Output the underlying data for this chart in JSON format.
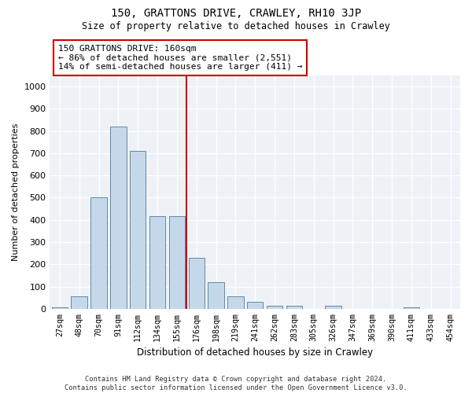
{
  "title": "150, GRATTONS DRIVE, CRAWLEY, RH10 3JP",
  "subtitle": "Size of property relative to detached houses in Crawley",
  "xlabel": "Distribution of detached houses by size in Crawley",
  "ylabel": "Number of detached properties",
  "bins": [
    "27sqm",
    "48sqm",
    "70sqm",
    "91sqm",
    "112sqm",
    "134sqm",
    "155sqm",
    "176sqm",
    "198sqm",
    "219sqm",
    "241sqm",
    "262sqm",
    "283sqm",
    "305sqm",
    "326sqm",
    "347sqm",
    "369sqm",
    "390sqm",
    "411sqm",
    "433sqm",
    "454sqm"
  ],
  "bar_values": [
    5,
    55,
    500,
    820,
    710,
    415,
    415,
    228,
    118,
    55,
    30,
    12,
    12,
    0,
    12,
    0,
    0,
    0,
    5,
    0,
    0
  ],
  "bar_color": "#c5d8ea",
  "bar_edge_color": "#4a7ba0",
  "vline_color": "#cc0000",
  "annotation_text": "150 GRATTONS DRIVE: 160sqm\n← 86% of detached houses are smaller (2,551)\n14% of semi-detached houses are larger (411) →",
  "annotation_box_color": "#cc0000",
  "ylim": [
    0,
    1050
  ],
  "yticks": [
    0,
    100,
    200,
    300,
    400,
    500,
    600,
    700,
    800,
    900,
    1000
  ],
  "footer_line1": "Contains HM Land Registry data © Crown copyright and database right 2024.",
  "footer_line2": "Contains public sector information licensed under the Open Government Licence v3.0.",
  "plot_bg_color": "#eef2f7"
}
